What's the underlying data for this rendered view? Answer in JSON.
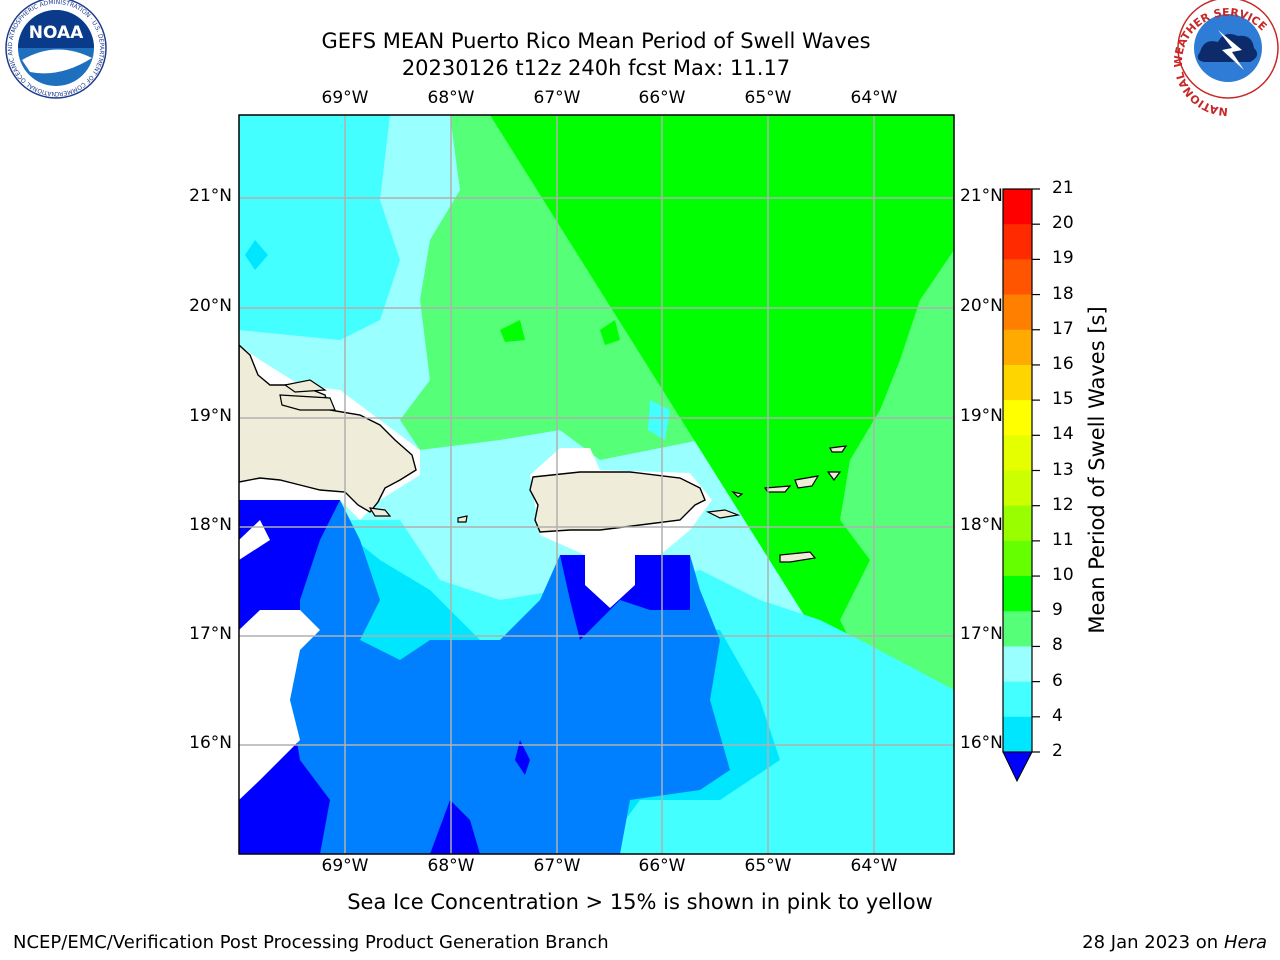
{
  "title": {
    "line1": "GEFS MEAN Puerto Rico Mean Period of Swell Waves",
    "line2": "20230126 t12z 240h fcst   Max: 11.17"
  },
  "map": {
    "lon_labels": [
      "69°W",
      "68°W",
      "67°W",
      "66°W",
      "65°W",
      "64°W"
    ],
    "lat_labels": [
      "21°N",
      "20°N",
      "19°N",
      "18°N",
      "17°N",
      "16°N"
    ],
    "land_color": "#efedd9",
    "grid_color": "#b0b0b0"
  },
  "colorbar": {
    "label": "Mean Period of Swell Waves [s]",
    "ticks": [
      "21",
      "20",
      "19",
      "18",
      "17",
      "16",
      "15",
      "14",
      "13",
      "12",
      "11",
      "10",
      "9",
      "8",
      "6",
      "4",
      "2"
    ],
    "colors": [
      "#ff0000",
      "#ff2a00",
      "#ff5500",
      "#ff8000",
      "#ffaa00",
      "#ffd500",
      "#ffff00",
      "#e6ff00",
      "#ccff00",
      "#99ff00",
      "#66ff00",
      "#00ff00",
      "#55ff77",
      "#99ffff",
      "#44ffff",
      "#00e6ff",
      "#0080ff",
      "#0000ff"
    ]
  },
  "note": "Sea Ice Concentration > 15% is shown in pink to yellow",
  "footer": {
    "left": "NCEP/EMC/Verification Post Processing Product Generation Branch",
    "right_prefix": "28 Jan 2023 on ",
    "right_italic": "Hera"
  },
  "logos": {
    "noaa_text": "NOAA",
    "noaa_ring": "NATIONAL OCEANIC AND ATMOSPHERIC ADMINISTRATION · U.S. DEPARTMENT OF COMMERCE",
    "nws_ring": "NATIONAL WEATHER SERVICE"
  }
}
